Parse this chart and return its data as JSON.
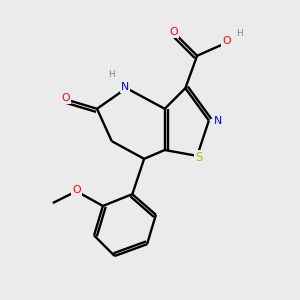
{
  "background_color": "#ebebeb",
  "bond_color": "#000000",
  "atom_colors": {
    "O": "#ff0000",
    "N": "#0000ff",
    "S": "#bbbb00",
    "H": "#6e8b8b",
    "C": "#000000"
  }
}
